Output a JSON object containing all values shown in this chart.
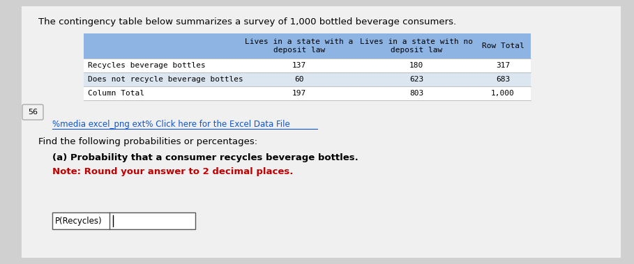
{
  "title": "The contingency table below summarizes a survey of 1,000 bottled beverage consumers.",
  "bg_color": "#d0d0d0",
  "page_bg": "#f0f0f0",
  "header_bg": "#8db4e2",
  "row1_bg": "#ffffff",
  "row2_bg": "#dce6f1",
  "row3_bg": "#ffffff",
  "col_headers": [
    "Lives in a state with a\ndeposit law",
    "Lives in a state with no\ndeposit law",
    "Row Total"
  ],
  "row_labels": [
    "Recycles beverage bottles",
    "Does not recycle beverage bottles",
    "Column Total"
  ],
  "data": [
    [
      "137",
      "180",
      "317"
    ],
    [
      "60",
      "623",
      "683"
    ],
    [
      "197",
      "803",
      "1,000"
    ]
  ],
  "link_text": "%media excel_png ext% Click here for the Excel Data File",
  "find_text": "Find the following probabilities or percentages:",
  "part_a_text": "(a) Probability that a consumer recycles beverage bottles.",
  "note_text": "Note: Round your answer to 2 decimal places.",
  "input_label": "P(Recycles)",
  "left_number": "56",
  "font_color_main": "#000000",
  "font_color_link": "#1155cc",
  "font_color_red": "#c00000",
  "font_size_title": 9.5,
  "font_size_table": 8.0,
  "font_size_body": 9.5
}
